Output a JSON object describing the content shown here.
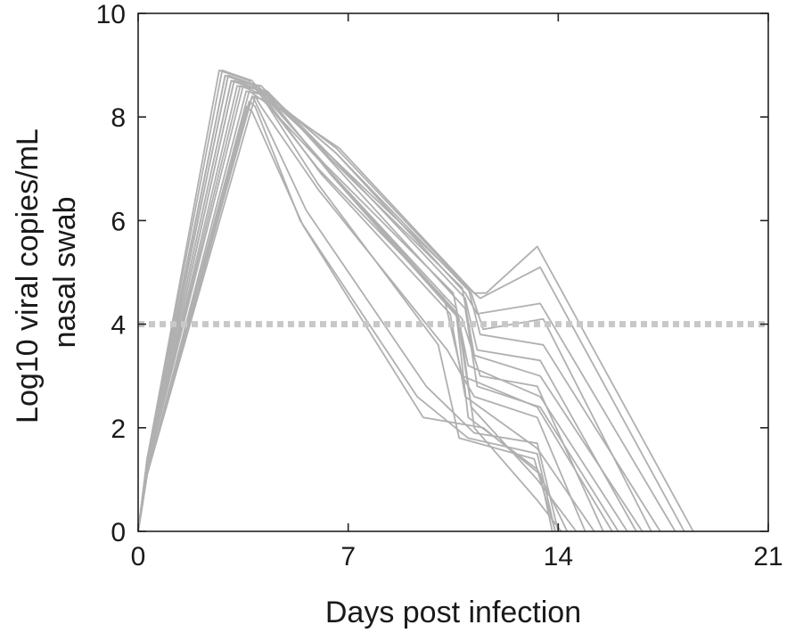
{
  "chart_data": {
    "type": "line",
    "xlabel": "Days post infection",
    "ylabel_lines": [
      "Log10 viral copies/mL",
      "nasal swab"
    ],
    "xlim": [
      0,
      21
    ],
    "ylim": [
      0,
      10
    ],
    "x_ticks": [
      0,
      7,
      14,
      21
    ],
    "y_ticks": [
      0,
      2,
      4,
      6,
      8,
      10
    ],
    "grid": false,
    "legend": "none",
    "colors": {
      "trajectories": "#b0b0b0",
      "threshold": "#c8c8c8",
      "axes": "#222222"
    },
    "threshold": {
      "y": 4,
      "style": "dotted"
    },
    "series": [
      {
        "x": [
          0,
          0.3,
          2.7,
          3.7,
          6.0,
          10.2,
          10.8,
          13.3,
          15.8
        ],
        "y": [
          0,
          1.4,
          8.9,
          8.7,
          7.0,
          4.5,
          3.0,
          2.4,
          0
        ]
      },
      {
        "x": [
          0,
          0.3,
          2.9,
          3.9,
          6.2,
          10.5,
          11.0,
          13.4,
          16.3
        ],
        "y": [
          0,
          1.3,
          8.8,
          8.6,
          7.1,
          4.6,
          3.2,
          2.6,
          0
        ]
      },
      {
        "x": [
          0,
          0.3,
          3.1,
          4.1,
          6.4,
          10.8,
          11.2,
          13.4,
          16.8
        ],
        "y": [
          0,
          1.3,
          8.7,
          8.6,
          7.2,
          4.7,
          3.4,
          3.0,
          0
        ]
      },
      {
        "x": [
          0,
          0.3,
          2.8,
          3.8,
          6.1,
          10.4,
          10.9,
          13.3,
          15.2
        ],
        "y": [
          0,
          1.4,
          8.9,
          8.7,
          6.9,
          4.2,
          2.6,
          1.6,
          0
        ]
      },
      {
        "x": [
          0,
          0.3,
          3.3,
          4.3,
          6.5,
          11.0,
          11.4,
          13.5,
          17.4
        ],
        "y": [
          0,
          1.2,
          8.6,
          8.5,
          7.2,
          4.7,
          3.8,
          3.6,
          0
        ]
      },
      {
        "x": [
          0,
          0.3,
          3.0,
          4.0,
          6.3,
          10.6,
          11.1,
          13.3,
          14.6
        ],
        "y": [
          0,
          1.3,
          8.8,
          8.6,
          7.0,
          4.3,
          2.4,
          1.0,
          0
        ]
      },
      {
        "x": [
          0,
          0.3,
          3.6,
          4.4,
          6.6,
          10.9,
          11.3,
          13.4,
          17.9
        ],
        "y": [
          0,
          1.1,
          8.5,
          8.4,
          7.3,
          4.6,
          4.2,
          4.4,
          0
        ]
      },
      {
        "x": [
          0,
          0.3,
          3.2,
          4.2,
          6.4,
          10.7,
          11.2,
          13.3,
          14.1
        ],
        "y": [
          0,
          1.2,
          8.7,
          8.5,
          6.9,
          4.1,
          2.0,
          0.6,
          0
        ]
      },
      {
        "x": [
          0,
          0.3,
          3.4,
          4.3,
          6.6,
          11.0,
          11.4,
          13.4,
          18.2
        ],
        "y": [
          0,
          1.2,
          8.6,
          8.4,
          7.4,
          4.7,
          4.5,
          5.1,
          0
        ]
      },
      {
        "x": [
          0,
          0.3,
          3.8,
          4.4,
          6.7,
          11.2,
          11.6,
          13.3,
          18.5
        ],
        "y": [
          0,
          1.1,
          8.4,
          8.3,
          7.4,
          4.6,
          4.6,
          5.5,
          0
        ]
      },
      {
        "x": [
          0,
          0.3,
          2.9,
          3.9,
          6.0,
          10.0,
          10.7,
          13.2,
          13.9
        ],
        "y": [
          0,
          1.4,
          8.8,
          8.6,
          6.7,
          3.6,
          1.8,
          1.4,
          0
        ]
      },
      {
        "x": [
          0,
          0.3,
          3.5,
          4.3,
          6.5,
          10.9,
          11.3,
          13.4,
          16.0
        ],
        "y": [
          0,
          1.2,
          8.6,
          8.5,
          7.1,
          4.3,
          2.8,
          2.4,
          0
        ]
      },
      {
        "x": [
          0,
          0.3,
          3.7,
          4.2,
          6.3,
          10.8,
          11.4,
          13.3,
          15.5
        ],
        "y": [
          0,
          1.1,
          8.5,
          8.3,
          7.0,
          4.1,
          3.0,
          2.8,
          0
        ]
      },
      {
        "x": [
          0,
          0.3,
          3.9,
          4.1,
          6.0,
          10.3,
          11.2,
          13.3,
          14.9
        ],
        "y": [
          0,
          1.1,
          8.4,
          8.2,
          6.6,
          3.5,
          2.6,
          2.2,
          0
        ]
      },
      {
        "x": [
          0,
          0.3,
          3.8,
          3.9,
          5.6,
          9.6,
          11.2,
          13.3,
          14.0
        ],
        "y": [
          0,
          1.1,
          8.4,
          8.3,
          6.2,
          2.8,
          1.9,
          1.7,
          0
        ]
      },
      {
        "x": [
          0,
          0.3,
          3.7,
          3.9,
          5.4,
          9.3,
          11.0,
          13.3,
          13.9
        ],
        "y": [
          0,
          1.1,
          8.3,
          8.2,
          6.0,
          2.6,
          1.8,
          1.5,
          0
        ]
      },
      {
        "x": [
          0,
          0.3,
          3.6,
          3.8,
          5.5,
          9.5,
          11.5,
          13.4,
          13.8
        ],
        "y": [
          0,
          1.1,
          8.2,
          8.1,
          5.9,
          2.2,
          2.0,
          1.1,
          0
        ]
      },
      {
        "x": [
          0,
          0.3,
          3.2,
          4.2,
          6.6,
          11.1,
          11.5,
          13.5,
          17.1
        ],
        "y": [
          0,
          1.2,
          8.7,
          8.5,
          7.3,
          4.6,
          3.9,
          4.1,
          0
        ]
      },
      {
        "x": [
          0,
          0.3,
          3.0,
          4.0,
          6.3,
          10.6,
          11.0,
          13.3,
          14.3
        ],
        "y": [
          0,
          1.3,
          8.8,
          8.6,
          7.0,
          4.2,
          2.2,
          1.2,
          0
        ]
      },
      {
        "x": [
          0,
          0.3,
          3.1,
          4.1,
          6.5,
          10.9,
          11.3,
          13.4,
          16.6
        ],
        "y": [
          0,
          1.3,
          8.7,
          8.5,
          7.2,
          4.5,
          3.5,
          3.3,
          0
        ]
      }
    ]
  }
}
